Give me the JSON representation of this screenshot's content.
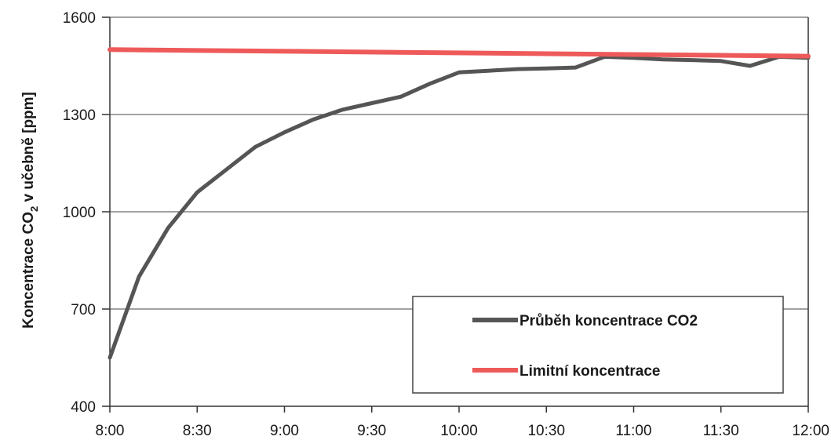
{
  "chart_data": {
    "type": "line",
    "ylabel_main": "Koncentrace CO",
    "ylabel_sub": "2",
    "ylabel_rest": " v učebně [ppm]",
    "ylim": [
      400,
      1600
    ],
    "yticks": [
      "400",
      "700",
      "1000",
      "1300",
      "1600"
    ],
    "ytick_values": [
      400,
      700,
      1000,
      1300,
      1600
    ],
    "xlim": [
      0,
      240
    ],
    "xticks": [
      "8:00",
      "8:30",
      "9:00",
      "9:30",
      "10:00",
      "10:30",
      "11:00",
      "11:30",
      "12:00"
    ],
    "xtick_values": [
      0,
      30,
      60,
      90,
      120,
      150,
      180,
      210,
      240
    ],
    "grid": "horizontal",
    "legend_position": "bottom-right",
    "series": [
      {
        "name": "Průběh koncentrace CO2",
        "color": "#555555",
        "x": [
          0,
          10,
          20,
          30,
          40,
          50,
          60,
          70,
          80,
          90,
          100,
          110,
          120,
          130,
          140,
          150,
          160,
          170,
          180,
          190,
          200,
          210,
          220,
          230,
          240
        ],
        "y": [
          550,
          800,
          950,
          1060,
          1130,
          1200,
          1245,
          1285,
          1315,
          1335,
          1355,
          1395,
          1430,
          1435,
          1440,
          1442,
          1445,
          1478,
          1475,
          1470,
          1468,
          1465,
          1450,
          1478,
          1475
        ]
      },
      {
        "name": "Limitní koncentrace",
        "color": "#ee5a5a",
        "x": [
          0,
          240
        ],
        "y": [
          1500,
          1480
        ]
      }
    ]
  }
}
